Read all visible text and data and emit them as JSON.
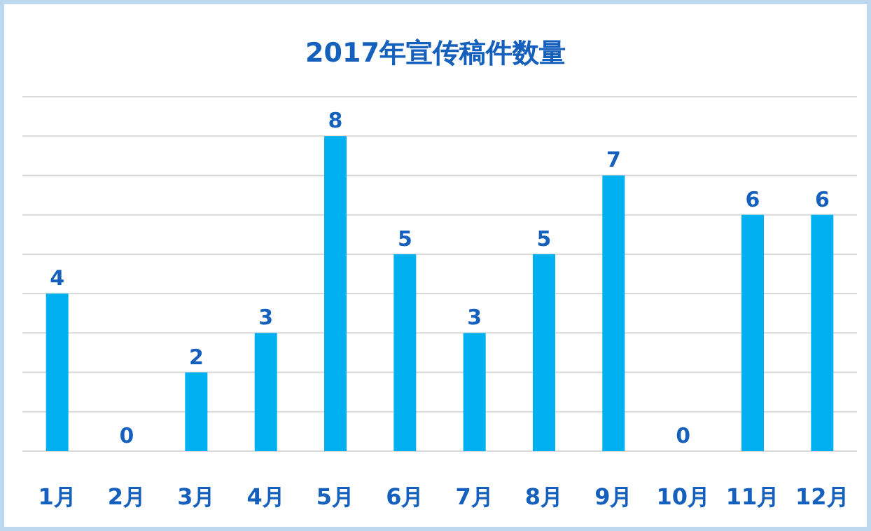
{
  "chart_data": {
    "type": "bar",
    "title": "2017年宣传稿件数量",
    "categories": [
      "1月",
      "2月",
      "3月",
      "4月",
      "5月",
      "6月",
      "7月",
      "8月",
      "9月",
      "10月",
      "11月",
      "12月"
    ],
    "values": [
      4,
      0,
      2,
      3,
      8,
      5,
      3,
      5,
      7,
      0,
      6,
      6
    ],
    "color": "#00b0f0",
    "ylim": [
      0,
      9
    ],
    "yticks": [
      {
        "value": 0,
        "label": null
      },
      {
        "value": 1,
        "label": null
      },
      {
        "value": 2,
        "label": null
      },
      {
        "value": 3,
        "label": null
      },
      {
        "value": 4,
        "label": null
      },
      {
        "value": 5,
        "label": null
      },
      {
        "value": 6,
        "label": null
      },
      {
        "value": 7,
        "label": null
      },
      {
        "value": 8,
        "label": null
      },
      {
        "value": 9,
        "label": null
      }
    ],
    "grid": "y",
    "data_labels": true,
    "tick_labels": "x"
  }
}
